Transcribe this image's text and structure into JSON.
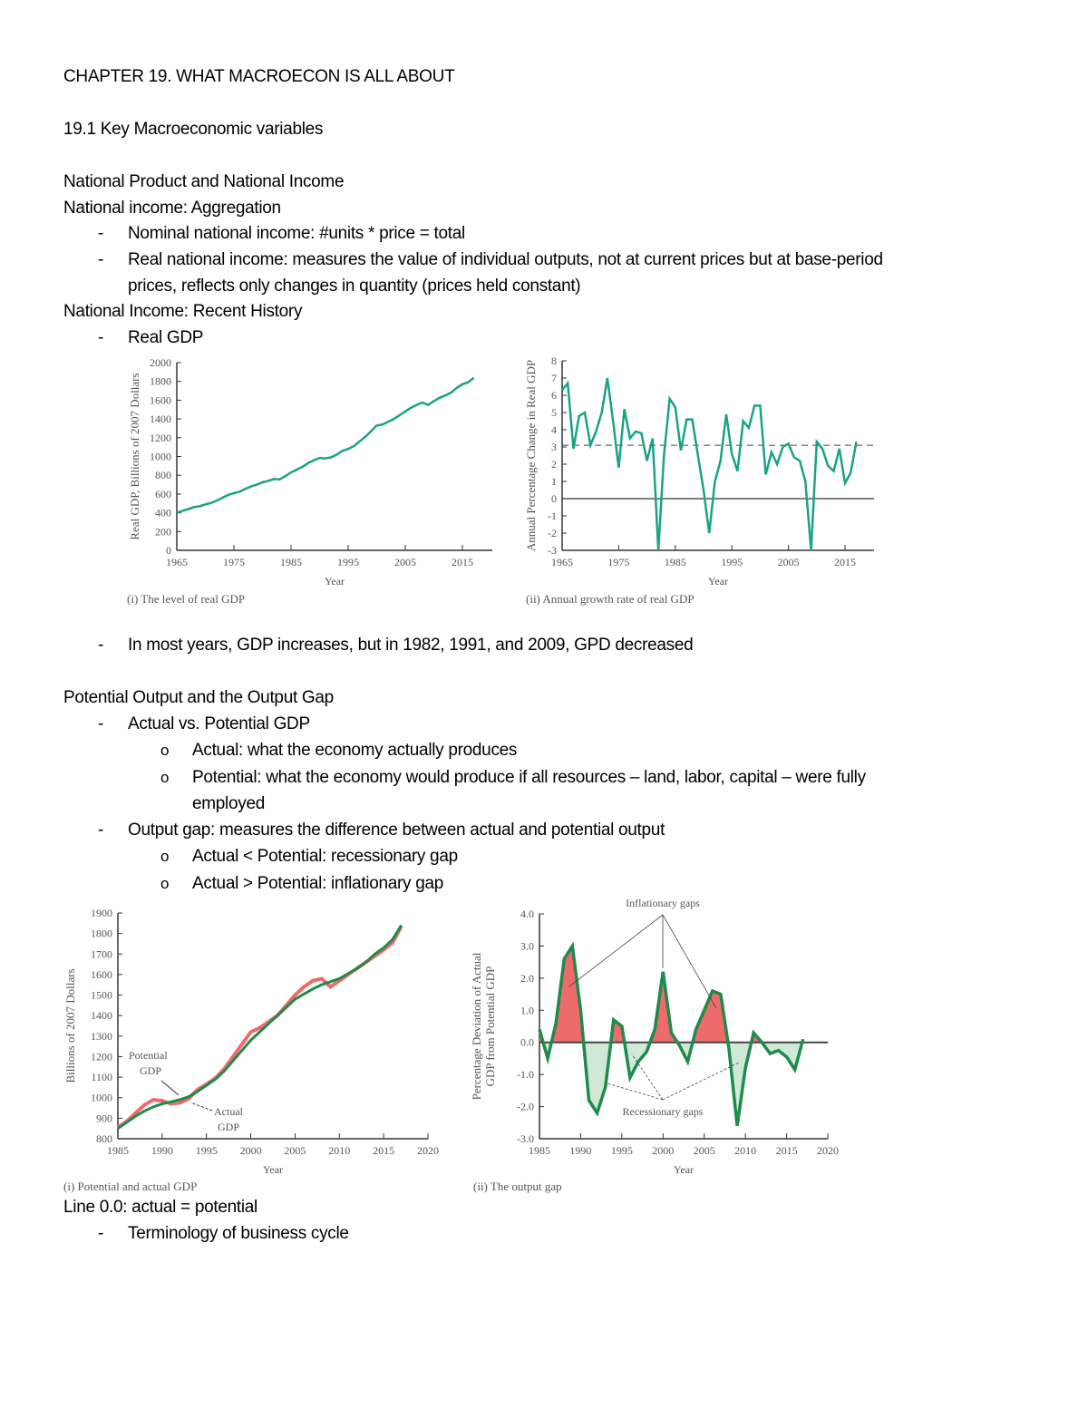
{
  "document": {
    "title": "CHAPTER 19. WHAT MACROECON IS ALL ABOUT",
    "section": "19.1 Key Macroeconomic variables",
    "h_national_product": "National Product and National Income",
    "h_aggregation": "National income: Aggregation",
    "b_nominal": "Nominal national income: #units * price = total",
    "b_real_1": "Real national income: measures the value of individual outputs, not at current prices but at base-period",
    "b_real_2": "prices, reflects only changes in quantity (prices held constant)",
    "h_recent": "National Income: Recent History",
    "b_real_gdp": "Real GDP",
    "b_most_years": "In most years, GDP increases, but in 1982, 1991, and 2009, GPD decreased",
    "h_potential": "Potential Output and the Output Gap",
    "b_actual_vs": "Actual vs. Potential GDP",
    "c_actual": "Actual: what the economy actually produces",
    "c_potential_1": "Potential: what the economy would produce if all resources – land, labor, capital – were fully",
    "c_potential_2": "employed",
    "b_output_gap": "Output gap: measures the difference between actual and potential output",
    "c_recessionary": "Actual < Potential: recessionary gap",
    "c_inflationary": "Actual > Potential: inflationary gap",
    "line_zero": "Line 0.0: actual = potential",
    "b_terminology": "Terminology of business cycle",
    "dash_glyph": "-",
    "circle_glyph": "o"
  },
  "chart_data": [
    {
      "type": "line",
      "caption": "(i) The level of real GDP",
      "xlabel": "Year",
      "ylabel": "Real GDP, Billions of 2007 Dollars",
      "xlim": [
        1965,
        2020
      ],
      "ylim": [
        0,
        2000
      ],
      "xticks": [
        1965,
        1975,
        1985,
        1995,
        2005,
        2015
      ],
      "yticks": [
        0,
        200,
        400,
        600,
        800,
        1000,
        1200,
        1400,
        1600,
        1800,
        2000
      ],
      "color": "#1aa383",
      "x_start": 1965,
      "values": [
        400,
        420,
        440,
        460,
        470,
        490,
        505,
        530,
        560,
        590,
        610,
        625,
        655,
        680,
        700,
        725,
        740,
        760,
        755,
        790,
        830,
        860,
        890,
        930,
        960,
        985,
        980,
        990,
        1020,
        1060,
        1080,
        1110,
        1160,
        1210,
        1270,
        1330,
        1340,
        1370,
        1400,
        1440,
        1480,
        1520,
        1550,
        1575,
        1550,
        1590,
        1625,
        1650,
        1680,
        1730,
        1770,
        1790,
        1840
      ]
    },
    {
      "type": "line",
      "caption": "(ii) Annual growth rate of real GDP",
      "xlabel": "Year",
      "ylabel": "Annual Percentage Change in Real GDP",
      "xlim": [
        1965,
        2020
      ],
      "ylim": [
        -3,
        8
      ],
      "xticks": [
        1965,
        1975,
        1985,
        1995,
        2005,
        2015
      ],
      "yticks": [
        -3,
        -2,
        -1,
        0,
        1,
        2,
        3,
        4,
        5,
        6,
        7,
        8
      ],
      "color": "#1aa383",
      "reference_line": 3.1,
      "x_start": 1965,
      "values": [
        6.3,
        6.7,
        2.9,
        4.8,
        5.0,
        3.1,
        3.9,
        5.0,
        7.0,
        4.5,
        1.8,
        5.2,
        3.5,
        3.9,
        3.8,
        2.2,
        3.5,
        -3.0,
        2.5,
        5.8,
        5.3,
        2.8,
        4.6,
        4.6,
        2.5,
        0.5,
        -2.0,
        1.0,
        2.2,
        4.9,
        2.6,
        1.6,
        4.5,
        4.1,
        5.4,
        5.4,
        1.4,
        2.7,
        2.0,
        3.0,
        3.2,
        2.4,
        2.2,
        1.0,
        -3.0,
        3.3,
        2.9,
        1.9,
        1.6,
        2.9,
        0.9,
        1.5,
        3.3
      ]
    },
    {
      "type": "line",
      "caption": "(i) Potential and actual GDP",
      "xlabel": "Year",
      "ylabel": "Billions of 2007 Dollars",
      "xlim": [
        1985,
        2020
      ],
      "ylim": [
        800,
        1900
      ],
      "xticks": [
        1985,
        1990,
        1995,
        2000,
        2005,
        2010,
        2015,
        2020
      ],
      "yticks": [
        800,
        900,
        1000,
        1100,
        1200,
        1300,
        1400,
        1500,
        1600,
        1700,
        1800,
        1900
      ],
      "annotations": [
        "Potential",
        "GDP",
        "Actual",
        "GDP"
      ],
      "x_start": 1985,
      "series": [
        {
          "name": "Actual GDP",
          "color": "#ee6b6b",
          "values": [
            855,
            885,
            925,
            965,
            990,
            985,
            970,
            975,
            995,
            1040,
            1065,
            1095,
            1140,
            1200,
            1260,
            1320,
            1340,
            1370,
            1400,
            1450,
            1500,
            1540,
            1570,
            1580,
            1540,
            1570,
            1600,
            1630,
            1660,
            1690,
            1720,
            1755,
            1835
          ]
        },
        {
          "name": "Potential GDP",
          "color": "#1f8a4c",
          "values": [
            850,
            880,
            910,
            935,
            955,
            970,
            980,
            990,
            1005,
            1030,
            1060,
            1090,
            1130,
            1180,
            1230,
            1280,
            1320,
            1360,
            1400,
            1440,
            1480,
            1505,
            1530,
            1550,
            1565,
            1580,
            1605,
            1630,
            1660,
            1700,
            1730,
            1770,
            1840
          ]
        }
      ]
    },
    {
      "type": "area",
      "caption": "(ii) The output gap",
      "xlabel": "Year",
      "ylabel": [
        "Percentage Deviation of Actual",
        "GDP from Potential GDP"
      ],
      "xlim": [
        1985,
        2020
      ],
      "ylim": [
        -3.0,
        4.0
      ],
      "xticks": [
        1985,
        1990,
        1995,
        2000,
        2005,
        2010,
        2015,
        2020
      ],
      "yticks": [
        "-3.0",
        "-2.0",
        "-1.0",
        "0.0",
        "1.0",
        "2.0",
        "3.0",
        "4.0"
      ],
      "annotations": [
        "Inflationary gaps",
        "Recessionary gaps"
      ],
      "line_color": "#1f8a4c",
      "positive_fill": "#ee6b6b",
      "negative_fill": "#cfe9d6",
      "x_start": 1985,
      "values": [
        0.4,
        -0.5,
        0.6,
        2.6,
        3.0,
        1.0,
        -1.8,
        -2.2,
        -1.4,
        0.7,
        0.5,
        -1.1,
        -0.6,
        -0.3,
        0.4,
        2.2,
        0.3,
        -0.1,
        -0.6,
        0.4,
        1.0,
        1.6,
        1.5,
        -0.2,
        -2.6,
        -0.8,
        0.3,
        0.0,
        -0.35,
        -0.25,
        -0.45,
        -0.85,
        0.1
      ]
    }
  ]
}
